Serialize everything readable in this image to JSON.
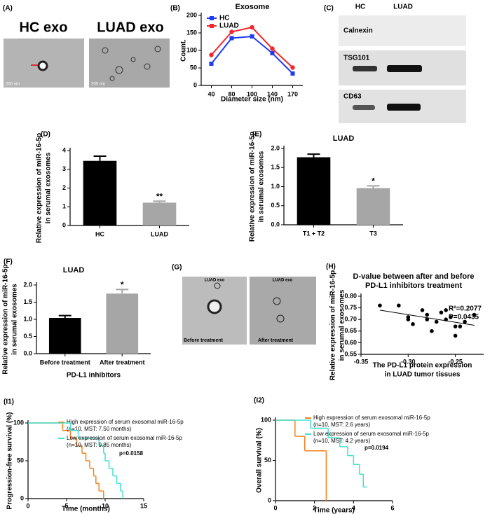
{
  "chart_data": [
    {
      "type": "line",
      "label": "(B)",
      "title": [
        "Exosome"
      ],
      "y_label": [
        "Count."
      ],
      "x_label": [
        "Diameter size (nm)"
      ],
      "categories": [
        "40",
        "80",
        "100",
        "140",
        "170"
      ],
      "series": [
        {
          "name": "HC",
          "color": "#1f3cf5",
          "values": [
            62,
            135,
            140,
            92,
            34
          ]
        },
        {
          "name": "LUAD",
          "color": "#f0282d",
          "values": [
            87,
            153,
            166,
            105,
            51
          ]
        }
      ],
      "ylim": [
        0,
        200
      ],
      "yticks": [
        0,
        50,
        100,
        150,
        200
      ],
      "legend": "top-left"
    },
    {
      "type": "bar",
      "label": "(D)",
      "y_label": [
        "Relative expression of miR-16-5p",
        "in serumal exosomes"
      ],
      "categories": [
        "HC",
        "LUAD"
      ],
      "values": [
        3.45,
        1.22
      ],
      "errors": [
        0.25,
        0.08
      ],
      "bar_labels": [
        null,
        "**"
      ],
      "colors": [
        "#000000",
        "#a6a6a6"
      ],
      "ylim": [
        0,
        4
      ],
      "yticks": [
        0,
        1,
        2,
        3,
        4
      ]
    },
    {
      "type": "bar",
      "label": "(E)",
      "title": [
        "LUAD"
      ],
      "y_label": [
        "Relative expression of miR-16-5p",
        "in serumal exosomes"
      ],
      "categories": [
        "T1 + T2",
        "T3"
      ],
      "values": [
        1.77,
        0.96
      ],
      "errors": [
        0.08,
        0.06
      ],
      "bar_labels": [
        null,
        "*"
      ],
      "colors": [
        "#000000",
        "#a6a6a6"
      ],
      "ylim": [
        0,
        2
      ],
      "yticks": [
        {
          "value": 0,
          "label": "0.0"
        },
        0.5,
        {
          "value": 1,
          "label": "1.0"
        },
        1.5,
        {
          "value": 2,
          "label": "2.0"
        }
      ]
    },
    {
      "type": "bar",
      "label": "(F)",
      "title": [
        "LUAD"
      ],
      "y_label": [
        "Relative expression of miR-16-5p",
        "in serumal exosomes"
      ],
      "x_label": [
        "PD-L1 inhibitors"
      ],
      "categories": [
        "Before treatment",
        "After treatment"
      ],
      "values": [
        1.04,
        1.75
      ],
      "errors": [
        0.07,
        0.12
      ],
      "bar_labels": [
        null,
        "*"
      ],
      "colors": [
        "#000000",
        "#a6a6a6"
      ],
      "ylim": [
        0,
        2
      ],
      "yticks": [
        {
          "value": 0,
          "label": "0.0"
        },
        0.5,
        {
          "value": 1,
          "label": "1.0"
        },
        1.5,
        {
          "value": 2,
          "label": "2.0"
        }
      ]
    },
    {
      "type": "scatter",
      "label": "(H)",
      "title": [
        "D-value between after and before",
        "PD-L1 inhibitors treatment"
      ],
      "y_label": [
        "Relative expression of miR-16-5p",
        "in serumal exosomes"
      ],
      "x_label": [
        "The PD-L1 protein expression",
        "in LUAD tumor tissues"
      ],
      "annotations": [
        "R²=0.2077",
        "P=0.0435"
      ],
      "x": [
        -0.33,
        -0.31,
        -0.3,
        -0.3,
        -0.295,
        -0.285,
        -0.28,
        -0.28,
        -0.275,
        -0.27,
        -0.265,
        -0.26,
        -0.26,
        -0.255,
        -0.25,
        -0.25,
        -0.245,
        -0.24,
        -0.23
      ],
      "values": [
        0.76,
        0.76,
        0.7,
        0.71,
        0.68,
        0.74,
        0.7,
        0.72,
        0.65,
        0.69,
        0.73,
        0.7,
        0.74,
        0.71,
        0.67,
        0.63,
        0.67,
        0.69,
        0.72
      ],
      "color": "#000000",
      "trend": {
        "x": [
          -0.33,
          -0.23
        ],
        "y": [
          0.74,
          0.675
        ]
      },
      "xlim": [
        -0.35,
        -0.22
      ],
      "xticks": [
        {
          "value": -0.35,
          "label": "-0.35"
        },
        {
          "value": -0.3,
          "label": "-0.30"
        },
        {
          "value": -0.25,
          "label": "-0.25"
        }
      ],
      "ylim": [
        0.55,
        0.8
      ],
      "yticks": [
        0.55,
        {
          "value": 0.6,
          "label": "0.60"
        },
        0.65,
        {
          "value": 0.7,
          "label": "0.70"
        },
        0.75,
        {
          "value": 0.8,
          "label": "0.80"
        }
      ]
    },
    {
      "type": "step",
      "label": "(I1)",
      "y_label": [
        "Progression-free survival (%)"
      ],
      "x_label": [
        "Time (months)"
      ],
      "note": "p=0.0158",
      "series": [
        {
          "name": "High expression of serum exosomal miR-16-5p",
          "detail": "(n=10, MST: 7.50 months)",
          "color": "#f5821f",
          "x": [
            0,
            4.5,
            5.5,
            6.3,
            7,
            7.5,
            8,
            8.5,
            8.8,
            9.2,
            9.8
          ],
          "values": [
            100,
            90,
            80,
            70,
            60,
            50,
            40,
            30,
            20,
            10,
            0
          ]
        },
        {
          "name": "Low expression of serum exosomal miR-16-5p",
          "detail": "(n=10, MST: 9.85 months)",
          "color": "#40e0d0",
          "x": [
            0,
            5.5,
            6.5,
            9.2,
            9.8,
            10,
            10.5,
            11,
            11.5,
            12,
            12.3
          ],
          "values": [
            100,
            90,
            80,
            70,
            60,
            50,
            40,
            30,
            20,
            10,
            0
          ]
        }
      ],
      "xlim": [
        0,
        15
      ],
      "xticks": [
        0,
        5,
        10,
        15
      ],
      "ylim": [
        0,
        100
      ],
      "yticks": [
        0,
        50,
        100
      ]
    },
    {
      "type": "step",
      "label": "(I2)",
      "y_label": [
        "Overall survival (%)"
      ],
      "x_label": [
        "Time (years)"
      ],
      "note": "p=0.0194",
      "series": [
        {
          "name": "High expression of serum exosomal miR-16-5p",
          "detail": "(n=10, MST: 2.6 years)",
          "color": "#f5821f",
          "x": [
            0,
            1,
            1.5,
            2.6
          ],
          "values": [
            100,
            80,
            62,
            0
          ]
        },
        {
          "name": "Low expression of serum exosomal miR-16-5p",
          "detail": "(n=10, MST: 4.2 years)",
          "color": "#40e0d0",
          "x": [
            0,
            1.8,
            2.7,
            3.3,
            3.7,
            4,
            4.3,
            4.5,
            4.7
          ],
          "values": [
            100,
            90,
            78,
            67,
            56,
            45,
            33,
            17,
            17
          ]
        }
      ],
      "xlim": [
        0,
        6
      ],
      "xticks": [
        0,
        2,
        4,
        6
      ],
      "ylim": [
        0,
        100
      ],
      "yticks": [
        0,
        50,
        100
      ]
    }
  ],
  "images": {
    "a": {
      "label": "(A)",
      "titles": [
        "HC exo",
        "LUAD exo"
      ],
      "scale": [
        "200 nm",
        "200 nm"
      ]
    },
    "c": {
      "label": "(C)",
      "columns": [
        "HC",
        "LUAD"
      ],
      "rows": [
        "Calnexin",
        "TSG101",
        "CD63"
      ]
    },
    "g": {
      "label": "(G)",
      "titles": [
        "LUAD exo",
        "LUAD exo"
      ],
      "captions": [
        "Before treatment",
        "After treatment"
      ]
    }
  }
}
